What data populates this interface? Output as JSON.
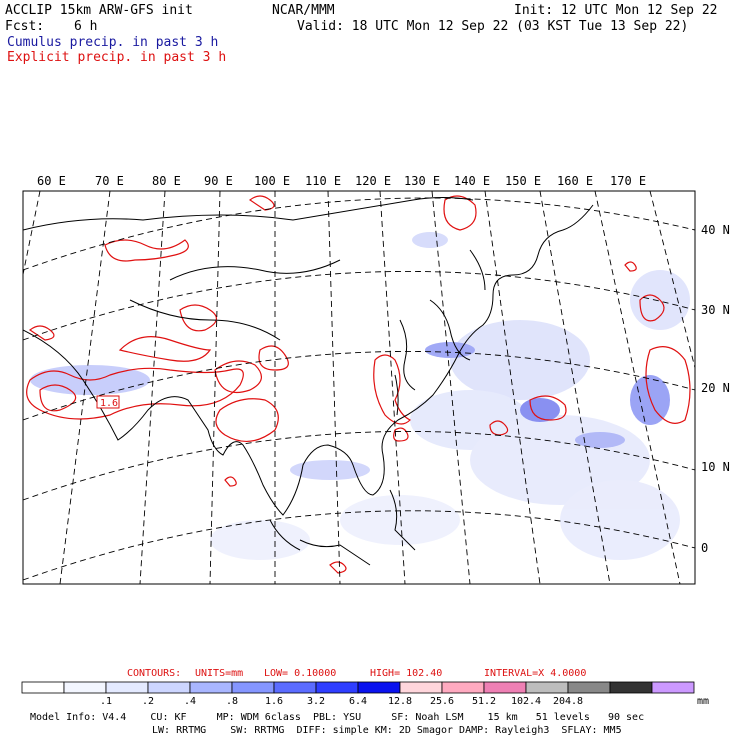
{
  "header": {
    "model": "ACCLIP 15km ARW-GFS init",
    "org": "NCAR/MMM",
    "init": "Init: 12 UTC Mon 12 Sep 22",
    "fcst_label": "Fcst:",
    "fcst_value": "6 h",
    "valid": "Valid: 18 UTC Mon 12 Sep 22 (03 KST Tue 13 Sep 22)"
  },
  "legend": {
    "cumulus": "Cumulus precip. in past 3 h",
    "explicit": "Explicit precip. in past 3 h",
    "cumulus_color": "#1a1aa0",
    "explicit_color": "#dd1111"
  },
  "map": {
    "lon_labels": [
      "60 E",
      "70 E",
      "80 E",
      "90 E",
      "100 E",
      "110 E",
      "120 E",
      "130 E",
      "140 E",
      "150 E",
      "160 E",
      "170 E"
    ],
    "lat_labels": [
      "40 N",
      "30 N",
      "20 N",
      "10 N",
      "0"
    ],
    "contour_marker": "1.6"
  },
  "contour_info": {
    "contours": "CONTOURS:",
    "units": "UNITS=mm",
    "low": "LOW= 0.10000",
    "high": "HIGH= 102.40",
    "interval": "INTERVAL=X 4.0000"
  },
  "colorbar": {
    "colors": [
      "#ffffff",
      "#f3f6ff",
      "#e4eaff",
      "#cdd6ff",
      "#a9b6ff",
      "#8596ff",
      "#5b6cff",
      "#2f3eff",
      "#0a12ee",
      "#ffd6dc",
      "#ffaac0",
      "#ee80b4",
      "#bdbdbd",
      "#888888",
      "#333333",
      "#cc99ff"
    ],
    "tick_labels": [
      ".1",
      ".2",
      ".4",
      ".8",
      "1.6",
      "3.2",
      "6.4",
      "12.8",
      "25.6",
      "51.2",
      "102.4",
      "204.8"
    ],
    "units": "mm"
  },
  "footer": {
    "line1": "Model Info: V4.4    CU: KF     MP: WDM 6class  PBL: YSU     SF: Noah LSM    15 km   51 levels   90 sec",
    "line2": "LW: RRTMG    SW: RRTMG  DIFF: simple KM: 2D Smagor DAMP: Rayleigh3  SFLAY: MM5"
  }
}
